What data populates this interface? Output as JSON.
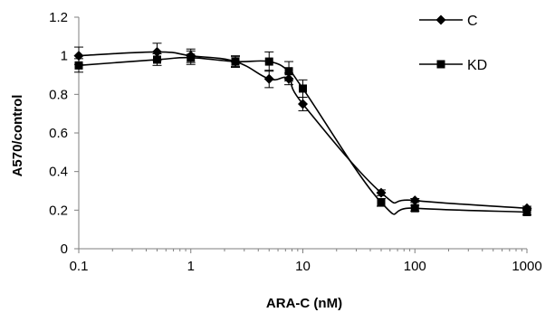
{
  "chart_data": {
    "type": "line",
    "title": "",
    "xlabel": "ARA-C (nM)",
    "ylabel": "A570/control",
    "xscale": "log",
    "xlim": [
      0.1,
      1000
    ],
    "ylim": [
      0,
      1.2
    ],
    "x_ticks": [
      "0.1",
      "1",
      "10",
      "100",
      "1000"
    ],
    "y_ticks": [
      "0",
      "0.2",
      "0.4",
      "0.6",
      "0.8",
      "1",
      "1.2"
    ],
    "grid": false,
    "legend_position": "top-right",
    "series": [
      {
        "name": "C",
        "marker": "diamond",
        "color": "#000000",
        "points": [
          {
            "x": 0.1,
            "y": 1.0,
            "err": 0.045
          },
          {
            "x": 0.5,
            "y": 1.02,
            "err": 0.045
          },
          {
            "x": 1,
            "y": 1.0,
            "err": 0.035
          },
          {
            "x": 2.5,
            "y": 0.97,
            "err": 0.025
          },
          {
            "x": 5,
            "y": 0.88,
            "err": 0.045
          },
          {
            "x": 7.5,
            "y": 0.88,
            "err": 0.03
          },
          {
            "x": 10,
            "y": 0.75,
            "err": 0.035
          },
          {
            "x": 50,
            "y": 0.29,
            "err": 0.015
          },
          {
            "x": 100,
            "y": 0.25,
            "err": 0.01
          },
          {
            "x": 1000,
            "y": 0.21,
            "err": 0.01
          }
        ]
      },
      {
        "name": "KD",
        "marker": "square",
        "color": "#000000",
        "points": [
          {
            "x": 0.1,
            "y": 0.95,
            "err": 0.035
          },
          {
            "x": 0.5,
            "y": 0.98,
            "err": 0.03
          },
          {
            "x": 1,
            "y": 0.99,
            "err": 0.035
          },
          {
            "x": 2.5,
            "y": 0.97,
            "err": 0.03
          },
          {
            "x": 5,
            "y": 0.97,
            "err": 0.05
          },
          {
            "x": 7.5,
            "y": 0.92,
            "err": 0.05
          },
          {
            "x": 10,
            "y": 0.83,
            "err": 0.045
          },
          {
            "x": 50,
            "y": 0.24,
            "err": 0.02
          },
          {
            "x": 100,
            "y": 0.21,
            "err": 0.015
          },
          {
            "x": 1000,
            "y": 0.19,
            "err": 0.015
          }
        ]
      }
    ]
  }
}
